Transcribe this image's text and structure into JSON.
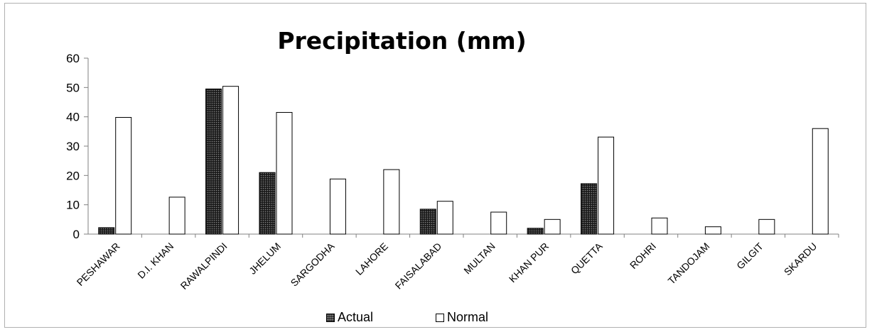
{
  "chart_data": {
    "type": "bar",
    "title": "Precipitation (mm)",
    "xlabel": "",
    "ylabel": "",
    "ylim": [
      0,
      60
    ],
    "yticks": [
      0,
      10,
      20,
      30,
      40,
      50,
      60
    ],
    "grid": false,
    "legend_position": "bottom",
    "categories": [
      "PESHAWAR",
      "D.I. KHAN",
      "RAWALPINDI",
      "JHELUM",
      "SARGODHA",
      "LAHORE",
      "FAISALABAD",
      "MULTAN",
      "KHAN PUR",
      "QUETTA",
      "ROHRI",
      "TANDOJAM",
      "GILGIT",
      "SKARDU"
    ],
    "series": [
      {
        "name": "Actual",
        "values": [
          2.2,
          0,
          49.5,
          21,
          0,
          0,
          8.5,
          0,
          2,
          17.2,
          0,
          0,
          0,
          0
        ],
        "color": "#1a1a1a",
        "pattern": "dotted-dark"
      },
      {
        "name": "Normal",
        "values": [
          39.8,
          12.6,
          50.4,
          41.5,
          18.8,
          22,
          11.2,
          7.5,
          5,
          33.1,
          5.5,
          2.5,
          5,
          36
        ],
        "color": "#ffffff",
        "pattern": "none"
      }
    ]
  }
}
